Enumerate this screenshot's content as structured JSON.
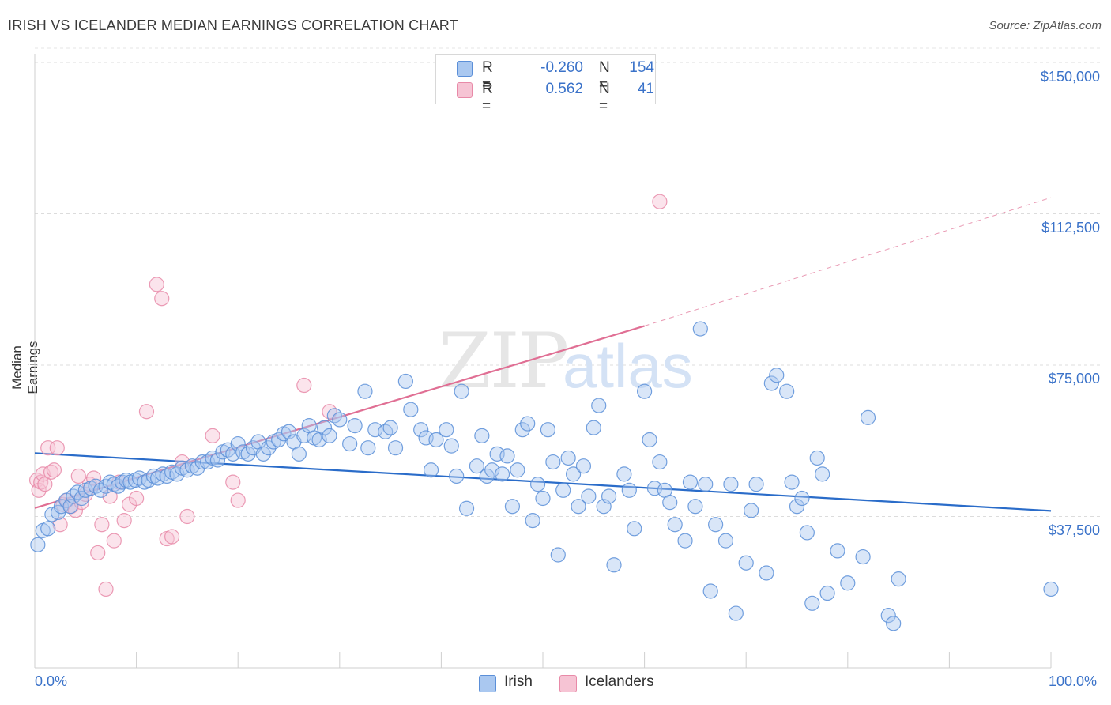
{
  "title": "IRISH VS ICELANDER MEDIAN EARNINGS CORRELATION CHART",
  "source": "Source: ZipAtlas.com",
  "watermark": {
    "zip": "ZIP",
    "atlas": "atlas"
  },
  "colors": {
    "irish": "#5b8fd8",
    "irish_fill": "#aac8f0",
    "icelanders": "#e88aa8",
    "icelanders_fill": "#f6c4d4",
    "irish_line": "#2a6cc9",
    "icelanders_line": "#e06f94",
    "axis_text": "#3a72c9"
  },
  "legend_top": [
    {
      "swatch": "irish",
      "r_label": "R =",
      "r_value": "-0.260",
      "n_label": "N =",
      "n_value": "154"
    },
    {
      "swatch": "icelanders",
      "r_label": "R =",
      "r_value": "0.562",
      "n_label": "N =",
      "n_value": "41"
    }
  ],
  "legend_bottom": [
    {
      "swatch": "irish",
      "label": "Irish"
    },
    {
      "swatch": "icelanders",
      "label": "Icelanders"
    }
  ],
  "chart_data": {
    "type": "scatter",
    "title": "IRISH VS ICELANDER MEDIAN EARNINGS CORRELATION CHART",
    "xlabel": "",
    "ylabel": "Median Earnings",
    "xlim": [
      0,
      100
    ],
    "ylim": [
      0,
      157000
    ],
    "x_tick_labels": [
      "0.0%",
      "100.0%"
    ],
    "y_ticks": [
      37500,
      75000,
      112500,
      150000
    ],
    "y_tick_labels": [
      "$37,500",
      "$75,000",
      "$112,500",
      "$150,000"
    ],
    "grid": true,
    "series": [
      {
        "name": "Irish",
        "color": "#5b8fd8",
        "points": [
          [
            0.3,
            30500
          ],
          [
            0.8,
            34000
          ],
          [
            1.3,
            34500
          ],
          [
            1.7,
            38000
          ],
          [
            2.3,
            38500
          ],
          [
            2.6,
            40000
          ],
          [
            3.1,
            41500
          ],
          [
            3.5,
            40000
          ],
          [
            3.8,
            42500
          ],
          [
            4.2,
            43500
          ],
          [
            4.6,
            42000
          ],
          [
            5.0,
            44000
          ],
          [
            5.5,
            44500
          ],
          [
            6.0,
            45000
          ],
          [
            6.5,
            44000
          ],
          [
            7.0,
            45000
          ],
          [
            7.4,
            46000
          ],
          [
            7.8,
            45500
          ],
          [
            8.2,
            45000
          ],
          [
            8.6,
            46000
          ],
          [
            9.0,
            46500
          ],
          [
            9.4,
            46000
          ],
          [
            9.9,
            46500
          ],
          [
            10.3,
            47000
          ],
          [
            10.8,
            46000
          ],
          [
            11.2,
            46500
          ],
          [
            11.7,
            47500
          ],
          [
            12.1,
            47000
          ],
          [
            12.6,
            48000
          ],
          [
            13.0,
            47500
          ],
          [
            13.5,
            48500
          ],
          [
            14.0,
            48000
          ],
          [
            14.5,
            49500
          ],
          [
            15.0,
            49000
          ],
          [
            15.5,
            50000
          ],
          [
            16.0,
            49500
          ],
          [
            16.5,
            51000
          ],
          [
            17.0,
            51000
          ],
          [
            17.5,
            52000
          ],
          [
            18.0,
            51500
          ],
          [
            18.5,
            53500
          ],
          [
            19.0,
            54000
          ],
          [
            19.5,
            53000
          ],
          [
            20.0,
            55500
          ],
          [
            20.5,
            53500
          ],
          [
            21.0,
            53000
          ],
          [
            21.5,
            54500
          ],
          [
            22.0,
            56000
          ],
          [
            22.5,
            53000
          ],
          [
            23.0,
            54500
          ],
          [
            23.5,
            56000
          ],
          [
            24.0,
            56500
          ],
          [
            24.5,
            58000
          ],
          [
            25.0,
            58500
          ],
          [
            25.5,
            56000
          ],
          [
            26.0,
            53000
          ],
          [
            26.5,
            57500
          ],
          [
            27.0,
            60000
          ],
          [
            27.5,
            57000
          ],
          [
            28.0,
            56500
          ],
          [
            28.5,
            59500
          ],
          [
            29.0,
            57500
          ],
          [
            29.5,
            62500
          ],
          [
            30.0,
            61500
          ],
          [
            31.0,
            55500
          ],
          [
            31.5,
            60000
          ],
          [
            32.5,
            68500
          ],
          [
            32.8,
            54500
          ],
          [
            33.5,
            59000
          ],
          [
            34.5,
            58500
          ],
          [
            35.0,
            59500
          ],
          [
            35.5,
            54500
          ],
          [
            36.5,
            71000
          ],
          [
            37.0,
            64000
          ],
          [
            38.0,
            59000
          ],
          [
            38.5,
            57000
          ],
          [
            39.0,
            49000
          ],
          [
            39.5,
            56500
          ],
          [
            40.5,
            59000
          ],
          [
            41.0,
            55000
          ],
          [
            41.5,
            47500
          ],
          [
            42.0,
            68500
          ],
          [
            42.5,
            39500
          ],
          [
            43.5,
            50000
          ],
          [
            44.0,
            57500
          ],
          [
            44.5,
            47500
          ],
          [
            45.0,
            49000
          ],
          [
            45.5,
            53000
          ],
          [
            46.0,
            48000
          ],
          [
            46.5,
            52500
          ],
          [
            47.0,
            40000
          ],
          [
            47.5,
            49000
          ],
          [
            48.0,
            59000
          ],
          [
            48.5,
            60500
          ],
          [
            49.0,
            36500
          ],
          [
            49.5,
            45500
          ],
          [
            50.0,
            42000
          ],
          [
            50.5,
            59000
          ],
          [
            51.0,
            51000
          ],
          [
            51.5,
            28000
          ],
          [
            52.0,
            44000
          ],
          [
            52.5,
            52000
          ],
          [
            53.0,
            48000
          ],
          [
            53.5,
            40000
          ],
          [
            54.0,
            50000
          ],
          [
            54.5,
            42500
          ],
          [
            55.0,
            59500
          ],
          [
            55.5,
            65000
          ],
          [
            56.0,
            40000
          ],
          [
            56.5,
            42500
          ],
          [
            57.0,
            25500
          ],
          [
            58.0,
            48000
          ],
          [
            58.5,
            44000
          ],
          [
            59.0,
            34500
          ],
          [
            60.0,
            68500
          ],
          [
            60.5,
            56500
          ],
          [
            61.0,
            44500
          ],
          [
            61.5,
            51000
          ],
          [
            62.0,
            44000
          ],
          [
            62.5,
            41000
          ],
          [
            63.0,
            35500
          ],
          [
            64.0,
            31500
          ],
          [
            64.5,
            46000
          ],
          [
            65.0,
            40000
          ],
          [
            65.5,
            84000
          ],
          [
            66.0,
            45500
          ],
          [
            66.5,
            19000
          ],
          [
            67.0,
            35500
          ],
          [
            68.0,
            31500
          ],
          [
            68.5,
            45500
          ],
          [
            69.0,
            13500
          ],
          [
            70.0,
            26000
          ],
          [
            70.5,
            39000
          ],
          [
            71.0,
            45500
          ],
          [
            72.0,
            23500
          ],
          [
            72.5,
            70500
          ],
          [
            73.0,
            72500
          ],
          [
            74.0,
            68500
          ],
          [
            74.5,
            46000
          ],
          [
            75.0,
            40000
          ],
          [
            75.5,
            42000
          ],
          [
            76.0,
            33500
          ],
          [
            76.5,
            16000
          ],
          [
            77.0,
            52000
          ],
          [
            77.5,
            48000
          ],
          [
            78.0,
            18500
          ],
          [
            79.0,
            29000
          ],
          [
            80.0,
            21000
          ],
          [
            81.5,
            27500
          ],
          [
            82.0,
            62000
          ],
          [
            84.0,
            13000
          ],
          [
            84.5,
            11000
          ],
          [
            85.0,
            22000
          ],
          [
            100.0,
            19500
          ]
        ]
      },
      {
        "name": "Icelanders",
        "color": "#e88aa8",
        "points": [
          [
            0.2,
            46500
          ],
          [
            0.4,
            44000
          ],
          [
            0.6,
            46000
          ],
          [
            0.8,
            48000
          ],
          [
            1.0,
            45500
          ],
          [
            1.3,
            54500
          ],
          [
            1.6,
            48500
          ],
          [
            1.9,
            49000
          ],
          [
            2.2,
            54500
          ],
          [
            2.5,
            35500
          ],
          [
            2.8,
            40500
          ],
          [
            3.2,
            41500
          ],
          [
            3.6,
            40000
          ],
          [
            4.0,
            39000
          ],
          [
            4.3,
            47500
          ],
          [
            4.6,
            41000
          ],
          [
            5.0,
            43000
          ],
          [
            5.4,
            45500
          ],
          [
            5.8,
            47000
          ],
          [
            6.2,
            28500
          ],
          [
            6.6,
            35500
          ],
          [
            7.0,
            19500
          ],
          [
            7.4,
            42500
          ],
          [
            7.8,
            31500
          ],
          [
            8.3,
            46000
          ],
          [
            8.8,
            36500
          ],
          [
            9.3,
            40500
          ],
          [
            10.0,
            42000
          ],
          [
            11.0,
            63500
          ],
          [
            12.0,
            95000
          ],
          [
            12.5,
            91500
          ],
          [
            13.0,
            32000
          ],
          [
            13.5,
            32500
          ],
          [
            14.5,
            51000
          ],
          [
            15.0,
            37500
          ],
          [
            17.5,
            57500
          ],
          [
            19.5,
            46000
          ],
          [
            20.0,
            41500
          ],
          [
            26.5,
            70000
          ],
          [
            29.0,
            63500
          ],
          [
            61.5,
            115500
          ]
        ]
      }
    ],
    "trendlines": [
      {
        "series": "Irish",
        "x": [
          0,
          100
        ],
        "y": [
          53200,
          38900
        ],
        "style": "solid"
      },
      {
        "series": "Icelanders",
        "x": [
          0,
          60
        ],
        "y": [
          39600,
          84700
        ],
        "style": "solid"
      },
      {
        "series": "Icelanders",
        "x": [
          60,
          100
        ],
        "y": [
          84700,
          116500
        ],
        "style": "dashed"
      }
    ]
  }
}
